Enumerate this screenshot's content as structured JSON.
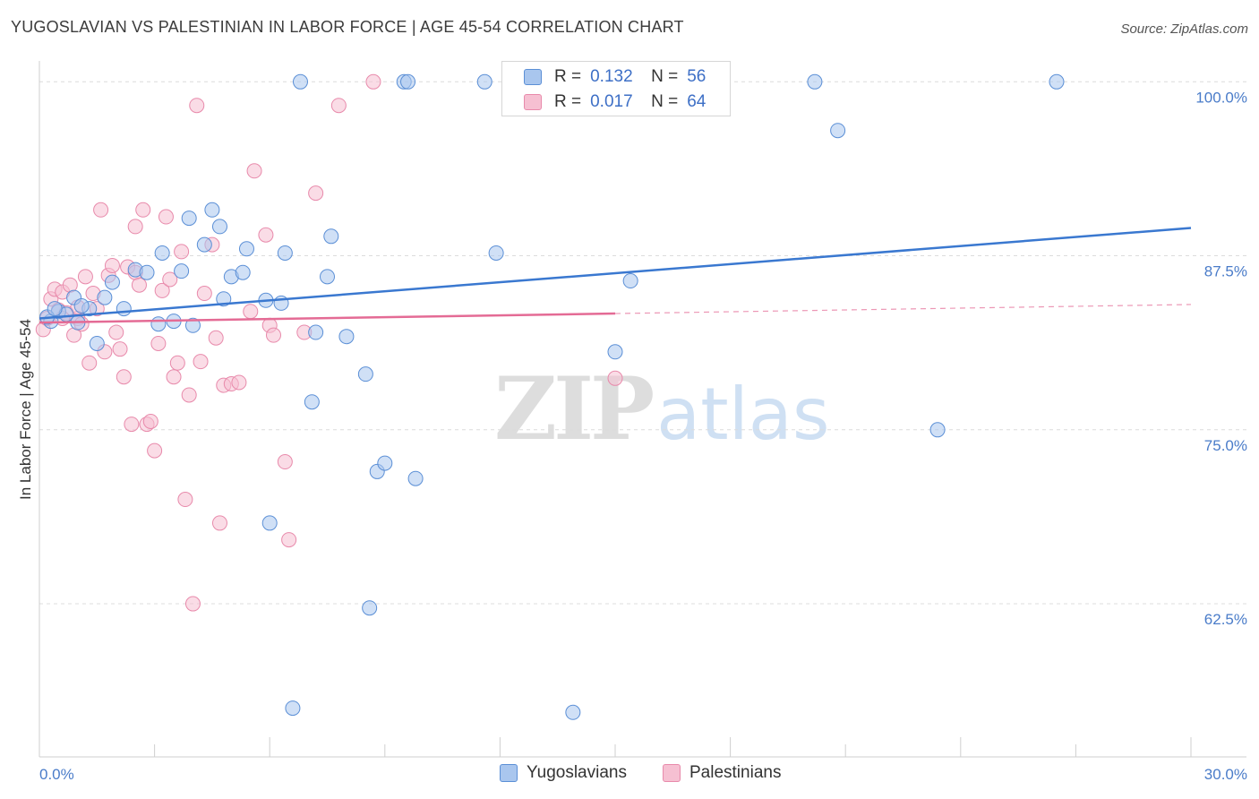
{
  "header": {
    "title": "YUGOSLAVIAN VS PALESTINIAN IN LABOR FORCE | AGE 45-54 CORRELATION CHART",
    "source": "Source: ZipAtlas.com"
  },
  "legend": {
    "row1": {
      "r_label": "R =",
      "r_value": "0.132",
      "n_label": "N =",
      "n_value": "56"
    },
    "row2": {
      "r_label": "R =",
      "r_value": "0.017",
      "n_label": "N =",
      "n_value": "64"
    }
  },
  "bottom_legend": {
    "series1": "Yugoslavians",
    "series2": "Palestinians"
  },
  "watermark": {
    "part1": "ZIP",
    "part2": "atlas"
  },
  "colors": {
    "blue_fill": "#a9c6ee",
    "blue_stroke": "#5b8fd6",
    "blue_line": "#3a78d0",
    "pink_fill": "#f6c0d2",
    "pink_stroke": "#e88aab",
    "pink_line": "#e46b95",
    "grid": "#dcdcdc",
    "tick_text": "#4a7cc9"
  },
  "chart_data": {
    "type": "scatter",
    "title": "YUGOSLAVIAN VS PALESTINIAN IN LABOR FORCE | AGE 45-54 CORRELATION CHART",
    "xlabel": "",
    "ylabel": "In Labor Force | Age 45-54",
    "xlim": [
      0,
      30
    ],
    "ylim": [
      51.5,
      101.5
    ],
    "x_tick_labels": [
      "0.0%",
      "30.0%"
    ],
    "y_ticks": [
      62.5,
      75.0,
      87.5,
      100.0
    ],
    "y_tick_labels": [
      "62.5%",
      "75.0%",
      "87.5%",
      "100.0%"
    ],
    "grid": true,
    "legend_position": "top-center",
    "series": [
      {
        "name": "Yugoslavians",
        "color": "#5b8fd6",
        "trend": {
          "x": [
            0,
            30
          ],
          "y": [
            83.0,
            89.5
          ],
          "dashed_from": null
        },
        "points": [
          [
            0.3,
            82.8
          ],
          [
            0.5,
            83.5
          ],
          [
            0.7,
            83.3
          ],
          [
            0.9,
            84.5
          ],
          [
            1.0,
            82.7
          ],
          [
            1.3,
            83.7
          ],
          [
            1.5,
            81.2
          ],
          [
            1.7,
            84.5
          ],
          [
            1.9,
            85.6
          ],
          [
            2.2,
            83.7
          ],
          [
            2.5,
            86.5
          ],
          [
            2.8,
            86.3
          ],
          [
            3.1,
            82.6
          ],
          [
            3.2,
            87.7
          ],
          [
            3.5,
            82.8
          ],
          [
            3.7,
            86.4
          ],
          [
            3.9,
            90.2
          ],
          [
            4.0,
            82.5
          ],
          [
            4.3,
            88.3
          ],
          [
            4.5,
            90.8
          ],
          [
            4.7,
            89.6
          ],
          [
            4.8,
            84.4
          ],
          [
            5.0,
            86.0
          ],
          [
            5.3,
            86.3
          ],
          [
            5.4,
            88.0
          ],
          [
            5.9,
            84.3
          ],
          [
            6.3,
            84.1
          ],
          [
            6.4,
            87.7
          ],
          [
            6.6,
            55.0
          ],
          [
            6.8,
            100.0
          ],
          [
            7.1,
            77.0
          ],
          [
            7.2,
            82.0
          ],
          [
            7.5,
            86.0
          ],
          [
            7.6,
            88.9
          ],
          [
            8.0,
            81.7
          ],
          [
            8.5,
            79.0
          ],
          [
            8.6,
            62.2
          ],
          [
            8.8,
            72.0
          ],
          [
            9.0,
            72.6
          ],
          [
            9.5,
            100.0
          ],
          [
            9.6,
            100.0
          ],
          [
            9.8,
            71.5
          ],
          [
            11.6,
            100.0
          ],
          [
            11.9,
            87.7
          ],
          [
            13.1,
            100.0
          ],
          [
            13.9,
            54.7
          ],
          [
            15.0,
            80.6
          ],
          [
            15.4,
            85.7
          ],
          [
            20.2,
            100.0
          ],
          [
            20.8,
            96.5
          ],
          [
            23.4,
            75.0
          ],
          [
            26.5,
            100.0
          ],
          [
            0.2,
            83.1
          ],
          [
            0.4,
            83.7
          ],
          [
            6.0,
            68.3
          ],
          [
            1.1,
            83.9
          ]
        ]
      },
      {
        "name": "Palestinians",
        "color": "#e88aab",
        "trend": {
          "x": [
            0,
            30
          ],
          "y": [
            82.7,
            84.0
          ],
          "dashed_from": 15.0
        },
        "points": [
          [
            0.1,
            82.2
          ],
          [
            0.2,
            83.0
          ],
          [
            0.3,
            84.4
          ],
          [
            0.4,
            85.1
          ],
          [
            0.5,
            83.6
          ],
          [
            0.6,
            84.9
          ],
          [
            0.7,
            83.4
          ],
          [
            0.8,
            85.4
          ],
          [
            0.9,
            81.8
          ],
          [
            1.0,
            83.0
          ],
          [
            1.1,
            82.6
          ],
          [
            1.2,
            86.0
          ],
          [
            1.3,
            79.8
          ],
          [
            1.4,
            84.8
          ],
          [
            1.5,
            83.7
          ],
          [
            1.6,
            90.8
          ],
          [
            1.7,
            80.6
          ],
          [
            1.8,
            86.1
          ],
          [
            1.9,
            86.8
          ],
          [
            2.0,
            82.0
          ],
          [
            2.1,
            80.8
          ],
          [
            2.2,
            78.8
          ],
          [
            2.3,
            86.7
          ],
          [
            2.5,
            89.6
          ],
          [
            2.5,
            86.3
          ],
          [
            2.6,
            85.4
          ],
          [
            2.7,
            90.8
          ],
          [
            2.8,
            75.4
          ],
          [
            2.9,
            75.6
          ],
          [
            3.0,
            73.5
          ],
          [
            3.1,
            81.2
          ],
          [
            3.2,
            85.0
          ],
          [
            3.3,
            90.3
          ],
          [
            3.4,
            85.8
          ],
          [
            3.5,
            78.8
          ],
          [
            3.6,
            79.8
          ],
          [
            3.7,
            87.8
          ],
          [
            3.8,
            70.0
          ],
          [
            3.9,
            77.5
          ],
          [
            4.0,
            62.5
          ],
          [
            4.1,
            98.3
          ],
          [
            4.2,
            79.9
          ],
          [
            4.5,
            88.3
          ],
          [
            4.6,
            81.6
          ],
          [
            4.7,
            68.3
          ],
          [
            4.8,
            78.2
          ],
          [
            5.0,
            78.3
          ],
          [
            5.2,
            78.4
          ],
          [
            5.5,
            83.5
          ],
          [
            5.6,
            93.6
          ],
          [
            5.9,
            89.0
          ],
          [
            6.0,
            82.5
          ],
          [
            6.1,
            81.8
          ],
          [
            6.4,
            72.7
          ],
          [
            6.5,
            67.1
          ],
          [
            6.9,
            82.0
          ],
          [
            7.2,
            92.0
          ],
          [
            7.8,
            98.3
          ],
          [
            8.7,
            100.0
          ],
          [
            15.0,
            78.7
          ],
          [
            2.4,
            75.4
          ],
          [
            1.0,
            83.8
          ],
          [
            0.6,
            83.0
          ],
          [
            4.3,
            84.8
          ]
        ]
      }
    ]
  }
}
